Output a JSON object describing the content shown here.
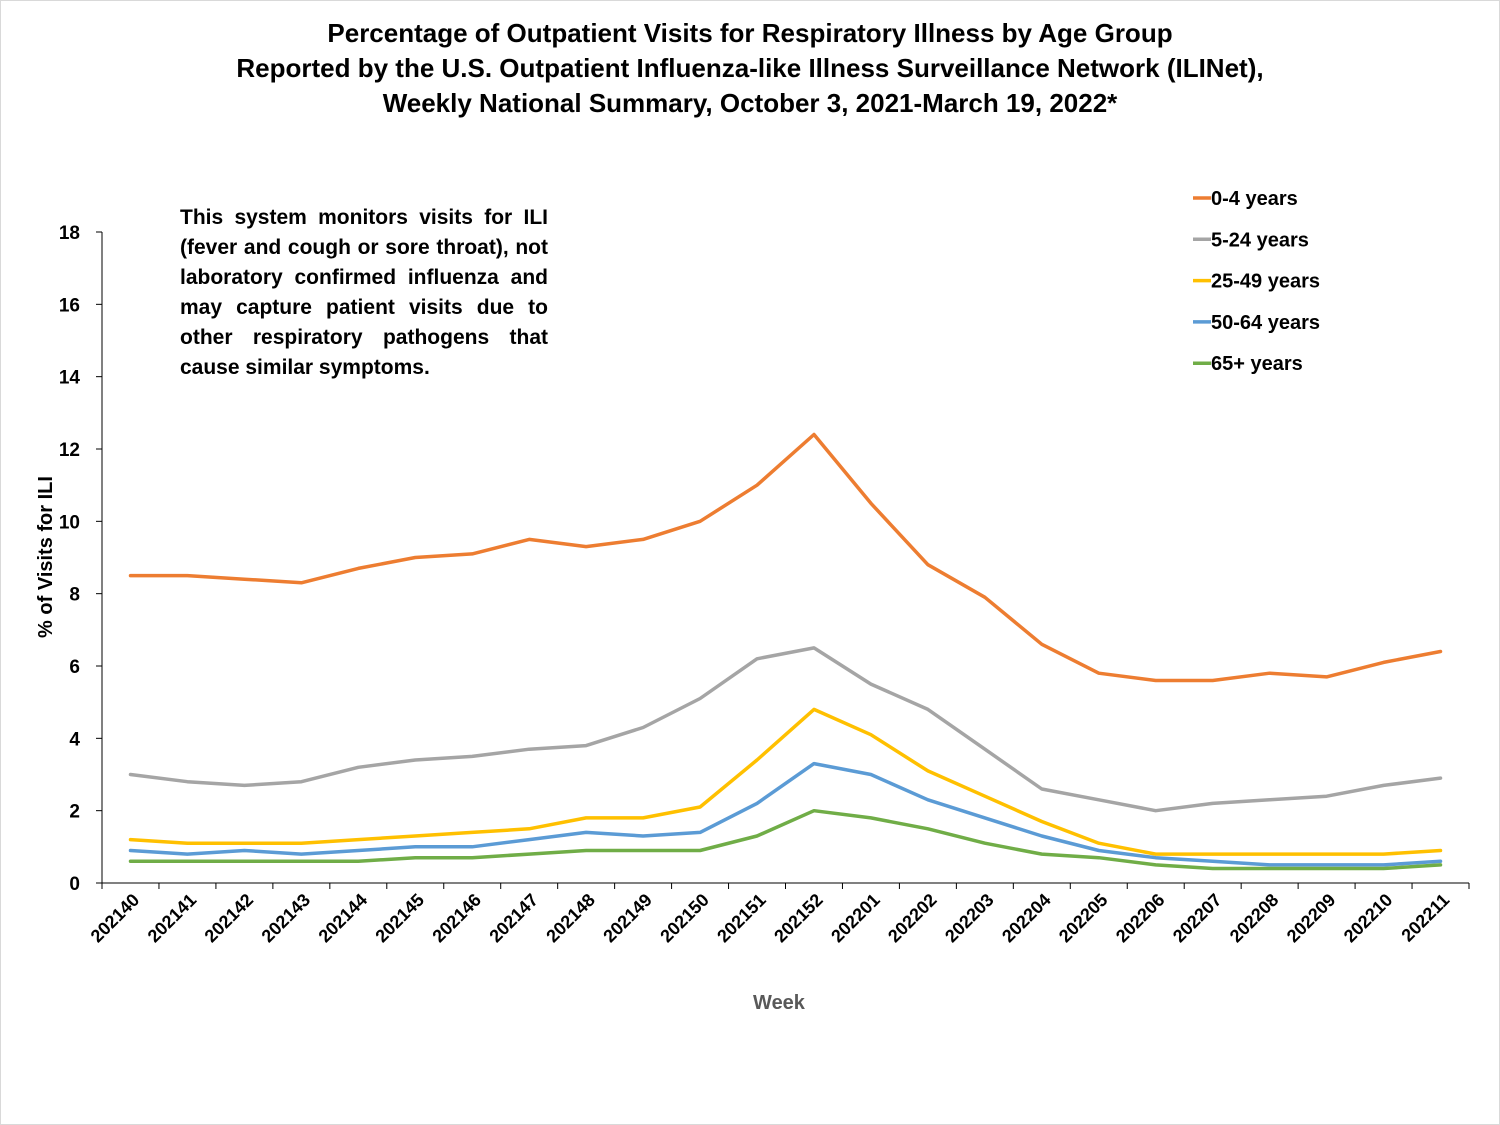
{
  "colors": {
    "age_0_4": "#ED7D31",
    "age_5_24": "#A5A5A5",
    "age_25_49": "#FFC000",
    "age_50_64": "#5B9BD5",
    "age_65_plus": "#70AD47",
    "axis": "#000000",
    "frame": "#d9d9d9"
  },
  "chart_data": {
    "type": "line",
    "title": [
      "Percentage of Outpatient Visits for Respiratory Illness by Age Group",
      "Reported by the U.S. Outpatient Influenza-like Illness Surveillance Network (ILINet),",
      "Weekly National Summary, October 3, 2021-March 19, 2022*"
    ],
    "note": "This system monitors visits for ILI (fever and cough or sore throat), not laboratory confirmed influenza and may capture patient visits due to other respiratory pathogens that cause similar symptoms.",
    "xlabel": "Week",
    "ylabel": "% of Visits for ILI",
    "ylim": [
      0,
      18
    ],
    "yticks": [
      0,
      2,
      4,
      6,
      8,
      10,
      12,
      14,
      16,
      18
    ],
    "grid": false,
    "legend_position": "top-right",
    "categories": [
      "202140",
      "202141",
      "202142",
      "202143",
      "202144",
      "202145",
      "202146",
      "202147",
      "202148",
      "202149",
      "202150",
      "202151",
      "202152",
      "202201",
      "202202",
      "202203",
      "202204",
      "202205",
      "202206",
      "202207",
      "202208",
      "202209",
      "202210",
      "202211"
    ],
    "series": [
      {
        "name": "0-4 years",
        "color_key": "age_0_4",
        "values": [
          8.5,
          8.5,
          8.4,
          8.3,
          8.7,
          9.0,
          9.1,
          9.5,
          9.3,
          9.5,
          10.0,
          11.0,
          12.4,
          10.5,
          8.8,
          7.9,
          6.6,
          5.8,
          5.6,
          5.6,
          5.8,
          5.7,
          6.1,
          6.4
        ]
      },
      {
        "name": "5-24 years",
        "color_key": "age_5_24",
        "values": [
          3.0,
          2.8,
          2.7,
          2.8,
          3.2,
          3.4,
          3.5,
          3.7,
          3.8,
          4.3,
          5.1,
          6.2,
          6.5,
          5.5,
          4.8,
          3.7,
          2.6,
          2.3,
          2.0,
          2.2,
          2.3,
          2.4,
          2.7,
          2.9
        ]
      },
      {
        "name": "25-49 years",
        "color_key": "age_25_49",
        "values": [
          1.2,
          1.1,
          1.1,
          1.1,
          1.2,
          1.3,
          1.4,
          1.5,
          1.8,
          1.8,
          2.1,
          3.4,
          4.8,
          4.1,
          3.1,
          2.4,
          1.7,
          1.1,
          0.8,
          0.8,
          0.8,
          0.8,
          0.8,
          0.9
        ]
      },
      {
        "name": "50-64 years",
        "color_key": "age_50_64",
        "values": [
          0.9,
          0.8,
          0.9,
          0.8,
          0.9,
          1.0,
          1.0,
          1.2,
          1.4,
          1.3,
          1.4,
          2.2,
          3.3,
          3.0,
          2.3,
          1.8,
          1.3,
          0.9,
          0.7,
          0.6,
          0.5,
          0.5,
          0.5,
          0.6
        ]
      },
      {
        "name": "65+ years",
        "color_key": "age_65_plus",
        "values": [
          0.6,
          0.6,
          0.6,
          0.6,
          0.6,
          0.7,
          0.7,
          0.8,
          0.9,
          0.9,
          0.9,
          1.3,
          2.0,
          1.8,
          1.5,
          1.1,
          0.8,
          0.7,
          0.5,
          0.4,
          0.4,
          0.4,
          0.4,
          0.5
        ]
      }
    ]
  }
}
